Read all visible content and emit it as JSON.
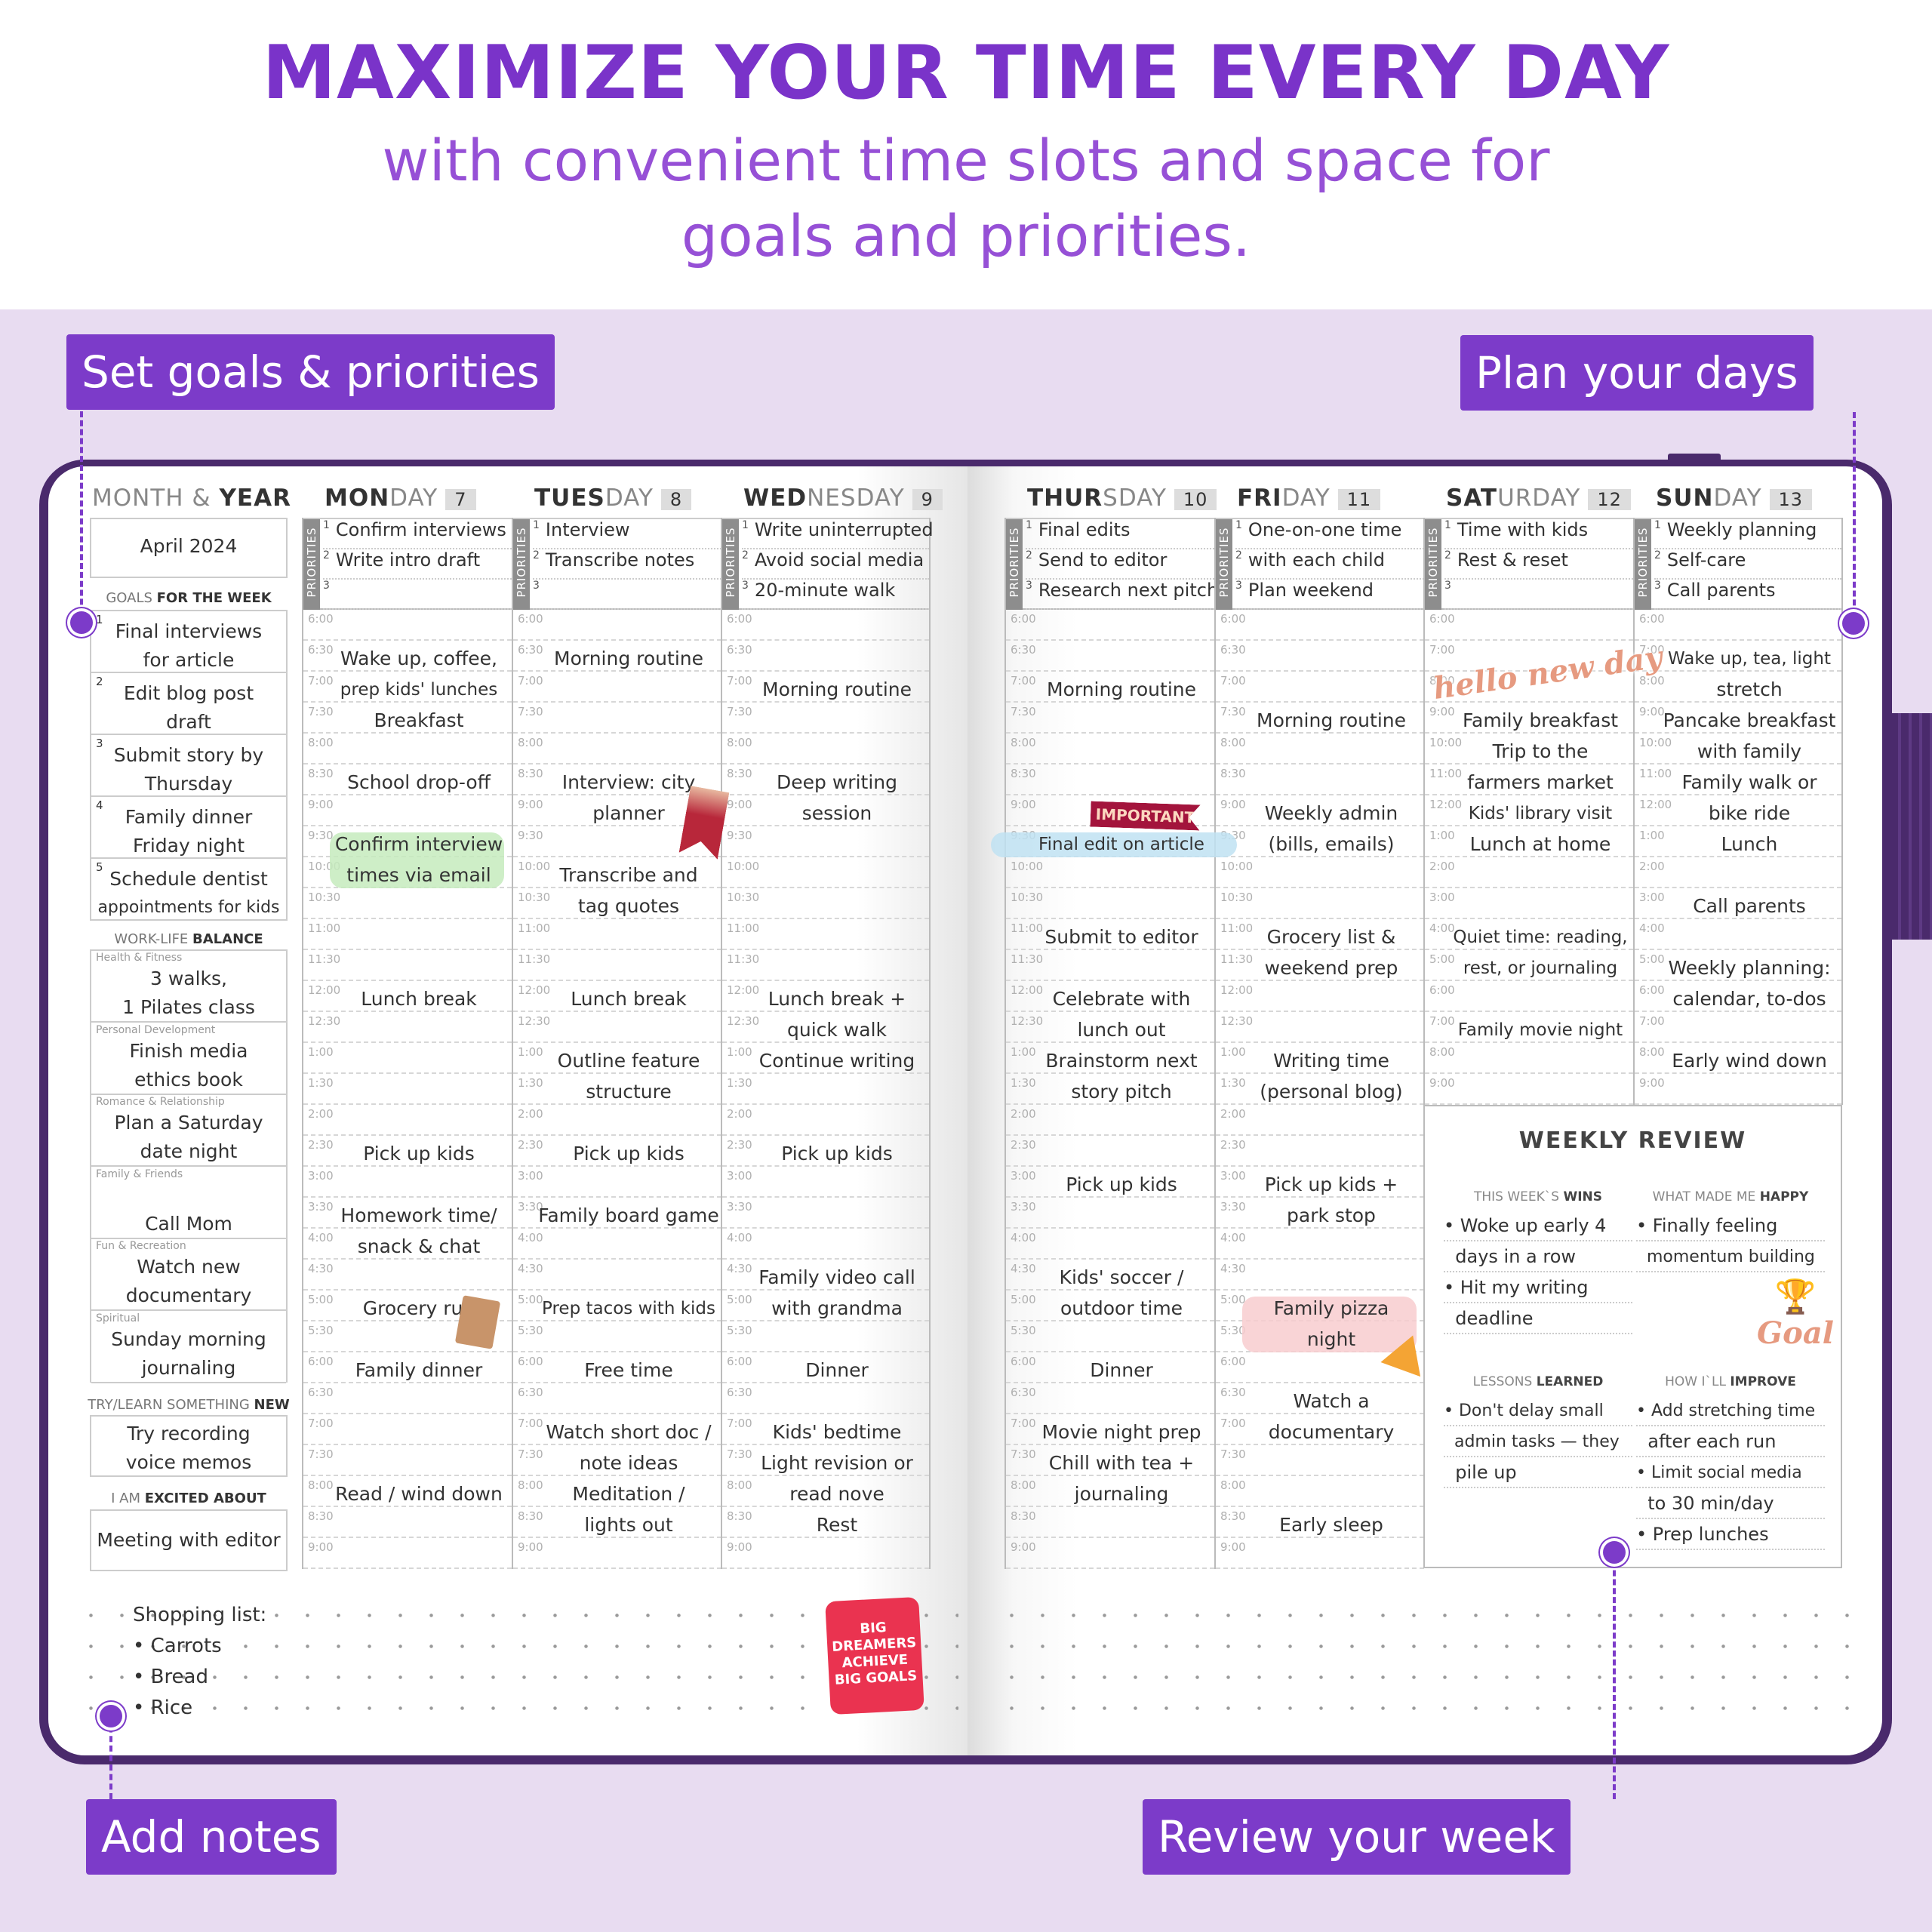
{
  "header": {
    "title": "MAXIMIZE YOUR TIME EVERY DAY",
    "subtitle_line1": "with convenient time slots and space for",
    "subtitle_line2": "goals and priorities."
  },
  "callouts": {
    "goals": "Set goals & priorities",
    "plan": "Plan your days",
    "notes": "Add notes",
    "review": "Review your week"
  },
  "colors": {
    "accent": "#7c3bc9",
    "cover": "#4a2a6c",
    "highlight_green": "#c6ebbd",
    "highlight_blue": "#bfe2f2",
    "highlight_pink": "#f8cccf",
    "sticker_red": "#ea3350",
    "important_red": "#a3143c"
  },
  "sidebar": {
    "month_year_light": "MONTH &",
    "month_year_bold": "YEAR",
    "month_year_value": "April 2024",
    "goals_light": "GOALS",
    "goals_bold": "FOR THE WEEK",
    "goals": [
      {
        "n": "1",
        "lines": [
          "Final interviews",
          "for article"
        ]
      },
      {
        "n": "2",
        "lines": [
          "Edit blog post",
          "draft"
        ]
      },
      {
        "n": "3",
        "lines": [
          "Submit story by",
          "Thursday"
        ]
      },
      {
        "n": "4",
        "lines": [
          "Family dinner",
          "Friday night"
        ]
      },
      {
        "n": "5",
        "lines": [
          "Schedule dentist",
          "appointments for kids"
        ]
      }
    ],
    "balance_light": "WORK-LIFE",
    "balance_bold": "BALANCE",
    "balance": [
      {
        "category": "Health & Fitness",
        "lines": [
          "3 walks,",
          "1 Pilates class"
        ]
      },
      {
        "category": "Personal Development",
        "lines": [
          "Finish media",
          "ethics book"
        ]
      },
      {
        "category": "Romance & Relationship",
        "lines": [
          "Plan a Saturday",
          "date night"
        ]
      },
      {
        "category": "Family & Friends",
        "lines": [
          "",
          "Call Mom"
        ]
      },
      {
        "category": "Fun & Recreation",
        "lines": [
          "Watch new",
          "documentary"
        ]
      },
      {
        "category": "Spiritual",
        "lines": [
          "Sunday morning",
          "journaling"
        ]
      }
    ],
    "try_light": "TRY/LEARN SOMETHING",
    "try_bold": "NEW",
    "try_lines": [
      "Try recording",
      "voice memos"
    ],
    "excited_light": "I AM",
    "excited_bold": "EXCITED ABOUT",
    "excited_value": "Meeting with editor"
  },
  "priorities_label": "PRIORITIES",
  "times_weekday": [
    "6:00",
    "6:30",
    "7:00",
    "7:30",
    "8:00",
    "8:30",
    "9:00",
    "9:30",
    "10:00",
    "10:30",
    "11:00",
    "11:30",
    "12:00",
    "12:30",
    "1:00",
    "1:30",
    "2:00",
    "2:30",
    "3:00",
    "3:30",
    "4:00",
    "4:30",
    "5:00",
    "5:30",
    "6:00",
    "6:30",
    "7:00",
    "7:30",
    "8:00",
    "8:30",
    "9:00"
  ],
  "times_weekend": [
    "6:00",
    "7:00",
    "8:00",
    "9:00",
    "10:00",
    "11:00",
    "12:00",
    "1:00",
    "2:00",
    "3:00",
    "4:00",
    "5:00",
    "6:00",
    "7:00",
    "8:00",
    "9:00"
  ],
  "days": [
    {
      "bold": "MON",
      "light": "DAY",
      "date": "7",
      "priorities": [
        "Confirm interviews",
        "Write intro draft",
        ""
      ],
      "entries": [
        {
          "row": 1,
          "lines": [
            "Wake up, coffee,",
            "prep kids' lunches",
            "Breakfast"
          ]
        },
        {
          "row": 5,
          "lines": [
            "School drop-off"
          ]
        },
        {
          "row": 7,
          "lines": [
            "Confirm interview",
            "times via email"
          ],
          "highlight": "green"
        },
        {
          "row": 12,
          "lines": [
            "Lunch break"
          ]
        },
        {
          "row": 17,
          "lines": [
            "Pick up kids"
          ]
        },
        {
          "row": 19,
          "lines": [
            "Homework time/",
            "snack & chat"
          ]
        },
        {
          "row": 22,
          "lines": [
            "Grocery run"
          ]
        },
        {
          "row": 24,
          "lines": [
            "Family dinner"
          ]
        },
        {
          "row": 28,
          "lines": [
            "Read / wind down"
          ]
        }
      ]
    },
    {
      "bold": "TUES",
      "light": "DAY",
      "date": "8",
      "priorities": [
        "Interview",
        "Transcribe notes",
        ""
      ],
      "entries": [
        {
          "row": 1,
          "lines": [
            "Morning routine"
          ]
        },
        {
          "row": 5,
          "lines": [
            "Interview: city",
            "planner"
          ]
        },
        {
          "row": 8,
          "lines": [
            "Transcribe and",
            "tag quotes"
          ]
        },
        {
          "row": 12,
          "lines": [
            "Lunch break"
          ]
        },
        {
          "row": 14,
          "lines": [
            "Outline feature",
            "structure"
          ]
        },
        {
          "row": 17,
          "lines": [
            "Pick up kids"
          ]
        },
        {
          "row": 19,
          "lines": [
            "Family board game"
          ]
        },
        {
          "row": 22,
          "lines": [
            "Prep tacos with kids"
          ]
        },
        {
          "row": 24,
          "lines": [
            "Free time"
          ]
        },
        {
          "row": 26,
          "lines": [
            "Watch short doc /",
            "note ideas"
          ]
        },
        {
          "row": 28,
          "lines": [
            "Meditation /",
            "lights out"
          ]
        }
      ]
    },
    {
      "bold": "WED",
      "light": "NESDAY",
      "date": "9",
      "priorities": [
        "Write uninterrupted",
        "Avoid social media",
        "20-minute walk"
      ],
      "entries": [
        {
          "row": 2,
          "lines": [
            "Morning routine"
          ]
        },
        {
          "row": 5,
          "lines": [
            "Deep writing",
            "session"
          ]
        },
        {
          "row": 12,
          "lines": [
            "Lunch break +",
            "quick walk",
            "Continue writing"
          ]
        },
        {
          "row": 17,
          "lines": [
            "Pick up kids"
          ]
        },
        {
          "row": 21,
          "lines": [
            "Family video call",
            "with grandma"
          ]
        },
        {
          "row": 24,
          "lines": [
            "Dinner"
          ]
        },
        {
          "row": 26,
          "lines": [
            "Kids' bedtime",
            "Light revision or",
            "read nove",
            "Rest"
          ]
        }
      ]
    },
    {
      "bold": "THUR",
      "light": "SDAY",
      "date": "10",
      "priorities": [
        "Final edits",
        "Send to editor",
        "Research next pitch"
      ],
      "entries": [
        {
          "row": 2,
          "lines": [
            "Morning routine"
          ]
        },
        {
          "row": 7,
          "lines": [
            "Final edit on article"
          ],
          "highlight": "blue"
        },
        {
          "row": 10,
          "lines": [
            "Submit to editor"
          ]
        },
        {
          "row": 12,
          "lines": [
            "Celebrate with",
            "lunch out",
            "Brainstorm next",
            "story pitch"
          ]
        },
        {
          "row": 18,
          "lines": [
            "Pick up kids"
          ]
        },
        {
          "row": 21,
          "lines": [
            "Kids' soccer /",
            "outdoor time"
          ]
        },
        {
          "row": 24,
          "lines": [
            "Dinner"
          ]
        },
        {
          "row": 26,
          "lines": [
            "Movie night prep",
            "Chill with tea +",
            "journaling"
          ]
        }
      ]
    },
    {
      "bold": "FRI",
      "light": "DAY",
      "date": "11",
      "priorities": [
        "One-on-one time",
        "with each child",
        "Plan weekend"
      ],
      "entries": [
        {
          "row": 3,
          "lines": [
            "Morning routine"
          ]
        },
        {
          "row": 6,
          "lines": [
            "Weekly admin",
            "(bills, emails)"
          ]
        },
        {
          "row": 10,
          "lines": [
            "Grocery list &",
            "weekend prep"
          ]
        },
        {
          "row": 14,
          "lines": [
            "Writing time",
            "(personal blog)"
          ]
        },
        {
          "row": 18,
          "lines": [
            "Pick up kids +",
            "park stop"
          ]
        },
        {
          "row": 22,
          "lines": [
            "Family pizza",
            "night"
          ],
          "highlight": "pink"
        },
        {
          "row": 25,
          "lines": [
            "Watch a",
            "documentary"
          ]
        },
        {
          "row": 29,
          "lines": [
            "Early sleep"
          ]
        }
      ]
    },
    {
      "bold": "SAT",
      "light": "URDAY",
      "date": "12",
      "weekend": true,
      "priorities": [
        "Time with kids",
        "Rest & reset",
        ""
      ],
      "entries": [
        {
          "row": 3,
          "lines": [
            "Family breakfast",
            "Trip to the",
            "farmers market",
            "Kids' library visit",
            "Lunch at home"
          ]
        },
        {
          "row": 10,
          "lines": [
            "Quiet time: reading,",
            "rest, or journaling"
          ]
        },
        {
          "row": 13,
          "lines": [
            "Family movie night"
          ]
        }
      ]
    },
    {
      "bold": "SUN",
      "light": "DAY",
      "date": "13",
      "weekend": true,
      "priorities": [
        "Weekly planning",
        "Self-care",
        "Call parents"
      ],
      "entries": [
        {
          "row": 1,
          "lines": [
            "Wake up, tea, light",
            "stretch",
            "Pancake breakfast",
            "with family",
            "Family walk or",
            "bike ride",
            "Lunch"
          ]
        },
        {
          "row": 9,
          "lines": [
            "Call parents"
          ]
        },
        {
          "row": 11,
          "lines": [
            "Weekly planning:",
            "calendar, to-dos"
          ]
        },
        {
          "row": 14,
          "lines": [
            "Early wind down"
          ]
        }
      ]
    }
  ],
  "stickers": {
    "important": "IMPORTANT",
    "hello": "hello new day",
    "goal": "Goal",
    "big_dreamers": [
      "BIG",
      "DREAMERS",
      "ACHIEVE",
      "BIG GOALS"
    ]
  },
  "weekly_review": {
    "title": "WEEKLY REVIEW",
    "wins": {
      "light": "THIS WEEK`S",
      "bold": "WINS",
      "lines": [
        "• Woke up early 4",
        "  days in a row",
        "• Hit my writing",
        "  deadline"
      ]
    },
    "happy": {
      "light": "WHAT MADE ME",
      "bold": "HAPPY",
      "lines": [
        "• Finally feeling",
        "  momentum building"
      ]
    },
    "lessons": {
      "light": "LESSONS",
      "bold": "LEARNED",
      "lines": [
        "• Don't delay small",
        "  admin tasks — they",
        "  pile up"
      ]
    },
    "improve": {
      "light": "HOW I`LL",
      "bold": "IMPROVE",
      "lines": [
        "• Add stretching time",
        "  after each run",
        "• Limit social media",
        "  to 30 min/day",
        "• Prep lunches"
      ]
    }
  },
  "notes": {
    "lines": [
      "Shopping list:",
      "• Carrots",
      "• Bread",
      "• Rice"
    ]
  }
}
